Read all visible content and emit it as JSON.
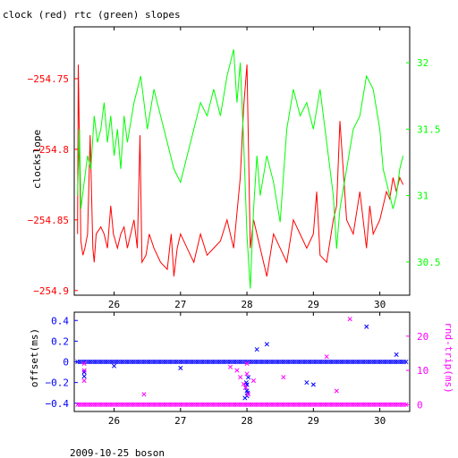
{
  "chart_data": [
    {
      "type": "line",
      "title": "clock (red) rtc (green) slopes",
      "ylabel": "clockslope",
      "x_ticks": [
        26,
        27,
        28,
        29,
        30
      ],
      "xlim": [
        25.4,
        30.45
      ],
      "y_left_ticks": [
        -254.9,
        -254.85,
        -254.8,
        -254.75
      ],
      "y_left_lim": [
        -254.9033,
        -254.7133
      ],
      "y_right_ticks": [
        30.5,
        31,
        31.5,
        32
      ],
      "y_right_lim": [
        30.25,
        32.27
      ],
      "left_axis_color": "#ff0000",
      "right_axis_color": "#00ff00",
      "series": [
        {
          "name": "clock",
          "color": "#ff0000",
          "axis": "left",
          "x": [
            25.45,
            25.46,
            25.5,
            25.53,
            25.56,
            25.6,
            25.64,
            25.68,
            25.7,
            25.73,
            25.8,
            25.85,
            25.9,
            25.95,
            25.99,
            26.05,
            26.1,
            26.15,
            26.2,
            26.25,
            26.3,
            26.35,
            26.39,
            26.42,
            26.48,
            26.53,
            26.6,
            26.7,
            26.8,
            26.86,
            26.9,
            26.95,
            27.0,
            27.1,
            27.2,
            27.3,
            27.4,
            27.5,
            27.6,
            27.7,
            27.8,
            27.9,
            27.95,
            28.0,
            28.05,
            28.1,
            28.2,
            28.3,
            28.4,
            28.5,
            28.6,
            28.7,
            28.8,
            28.9,
            29.0,
            29.05,
            29.1,
            29.2,
            29.3,
            29.35,
            29.4,
            29.5,
            29.6,
            29.7,
            29.8,
            29.85,
            29.9,
            30.0,
            30.05,
            30.1,
            30.15,
            30.2,
            30.25,
            30.3,
            30.35
          ],
          "y": [
            -254.86,
            -254.74,
            -254.865,
            -254.875,
            -254.87,
            -254.86,
            -254.79,
            -254.87,
            -254.88,
            -254.86,
            -254.855,
            -254.86,
            -254.87,
            -254.84,
            -254.86,
            -254.87,
            -254.86,
            -254.855,
            -254.87,
            -254.86,
            -254.85,
            -254.87,
            -254.79,
            -254.88,
            -254.875,
            -254.86,
            -254.87,
            -254.88,
            -254.885,
            -254.86,
            -254.89,
            -254.87,
            -254.86,
            -254.87,
            -254.88,
            -254.86,
            -254.875,
            -254.87,
            -254.865,
            -254.85,
            -254.87,
            -254.82,
            -254.77,
            -254.74,
            -254.87,
            -254.85,
            -254.87,
            -254.89,
            -254.86,
            -254.87,
            -254.88,
            -254.85,
            -254.86,
            -254.87,
            -254.86,
            -254.83,
            -254.875,
            -254.88,
            -254.85,
            -254.84,
            -254.78,
            -254.85,
            -254.86,
            -254.83,
            -254.87,
            -254.84,
            -254.86,
            -254.85,
            -254.84,
            -254.83,
            -254.835,
            -254.82,
            -254.83,
            -254.82,
            -254.825
          ]
        },
        {
          "name": "rtc",
          "color": "#00ff00",
          "axis": "right",
          "x": [
            25.45,
            25.48,
            25.5,
            25.55,
            25.6,
            25.65,
            25.7,
            25.75,
            25.8,
            25.85,
            25.9,
            25.95,
            26.0,
            26.05,
            26.1,
            26.15,
            26.2,
            26.3,
            26.4,
            26.5,
            26.6,
            26.7,
            26.8,
            26.9,
            27.0,
            27.1,
            27.2,
            27.3,
            27.4,
            27.5,
            27.6,
            27.7,
            27.8,
            27.85,
            27.9,
            27.95,
            28.0,
            28.05,
            28.1,
            28.15,
            28.2,
            28.3,
            28.4,
            28.5,
            28.6,
            28.7,
            28.8,
            28.9,
            29.0,
            29.1,
            29.2,
            29.3,
            29.35,
            29.4,
            29.5,
            29.6,
            29.7,
            29.8,
            29.9,
            30.0,
            30.05,
            30.1,
            30.15,
            30.2,
            30.25,
            30.3,
            30.35
          ],
          "y": [
            31.0,
            31.5,
            30.9,
            31.1,
            31.3,
            31.2,
            31.6,
            31.4,
            31.5,
            31.7,
            31.4,
            31.6,
            31.3,
            31.5,
            31.2,
            31.6,
            31.4,
            31.7,
            31.9,
            31.5,
            31.8,
            31.6,
            31.4,
            31.2,
            31.1,
            31.3,
            31.5,
            31.7,
            31.6,
            31.8,
            31.6,
            31.9,
            32.1,
            31.7,
            32.0,
            31.4,
            30.7,
            30.3,
            30.9,
            31.3,
            31.0,
            31.3,
            31.1,
            30.8,
            31.5,
            31.8,
            31.6,
            31.7,
            31.5,
            31.8,
            31.4,
            31.0,
            30.6,
            30.9,
            31.2,
            31.5,
            31.6,
            31.9,
            31.8,
            31.5,
            31.2,
            31.1,
            31.0,
            30.9,
            31.0,
            31.2,
            31.3
          ]
        }
      ]
    },
    {
      "type": "scatter",
      "ylabel": "offset(ms)",
      "y2label": "rnd-trip(ms)",
      "x_ticks": [
        26,
        27,
        28,
        29,
        30
      ],
      "xlim": [
        25.4,
        30.45
      ],
      "y_left_ticks": [
        -0.4,
        -0.2,
        0,
        0.2,
        0.4
      ],
      "y_left_lim": [
        -0.48,
        0.48
      ],
      "y_right_ticks": [
        0,
        10,
        20
      ],
      "y_right_lim": [
        -2,
        27
      ],
      "left_axis_color": "#0000ff",
      "right_axis_color": "#ff00ff",
      "series": [
        {
          "name": "offset",
          "color": "#0000ff",
          "axis": "left",
          "baseline_y": 0.0,
          "x": [
            25.55,
            25.55,
            26.0,
            27.0,
            27.97,
            27.98,
            27.99,
            28.0,
            28.01,
            28.02,
            28.0,
            28.0,
            28.15,
            28.3,
            28.9,
            29.0,
            29.8,
            30.25
          ],
          "y": [
            -0.1,
            -0.14,
            -0.04,
            -0.06,
            -0.35,
            -0.25,
            -0.2,
            -0.22,
            -0.3,
            -0.15,
            -0.28,
            -0.33,
            0.12,
            0.17,
            -0.2,
            -0.22,
            0.34,
            0.07
          ]
        },
        {
          "name": "rnd-trip",
          "color": "#ff00ff",
          "axis": "right",
          "baseline_y": 0.0,
          "x": [
            25.55,
            25.55,
            25.55,
            26.45,
            27.75,
            27.85,
            27.9,
            27.95,
            27.98,
            28.0,
            28.0,
            28.02,
            28.1,
            28.55,
            29.2,
            29.35,
            29.55
          ],
          "y": [
            12.0,
            10.0,
            7.0,
            3.0,
            11.0,
            10.0,
            8.0,
            6.0,
            5.0,
            9.0,
            12.0,
            3.0,
            7.0,
            8.0,
            14.0,
            4.0,
            25.0
          ]
        }
      ]
    }
  ],
  "footer": {
    "label": "2009-10-25 boson"
  }
}
